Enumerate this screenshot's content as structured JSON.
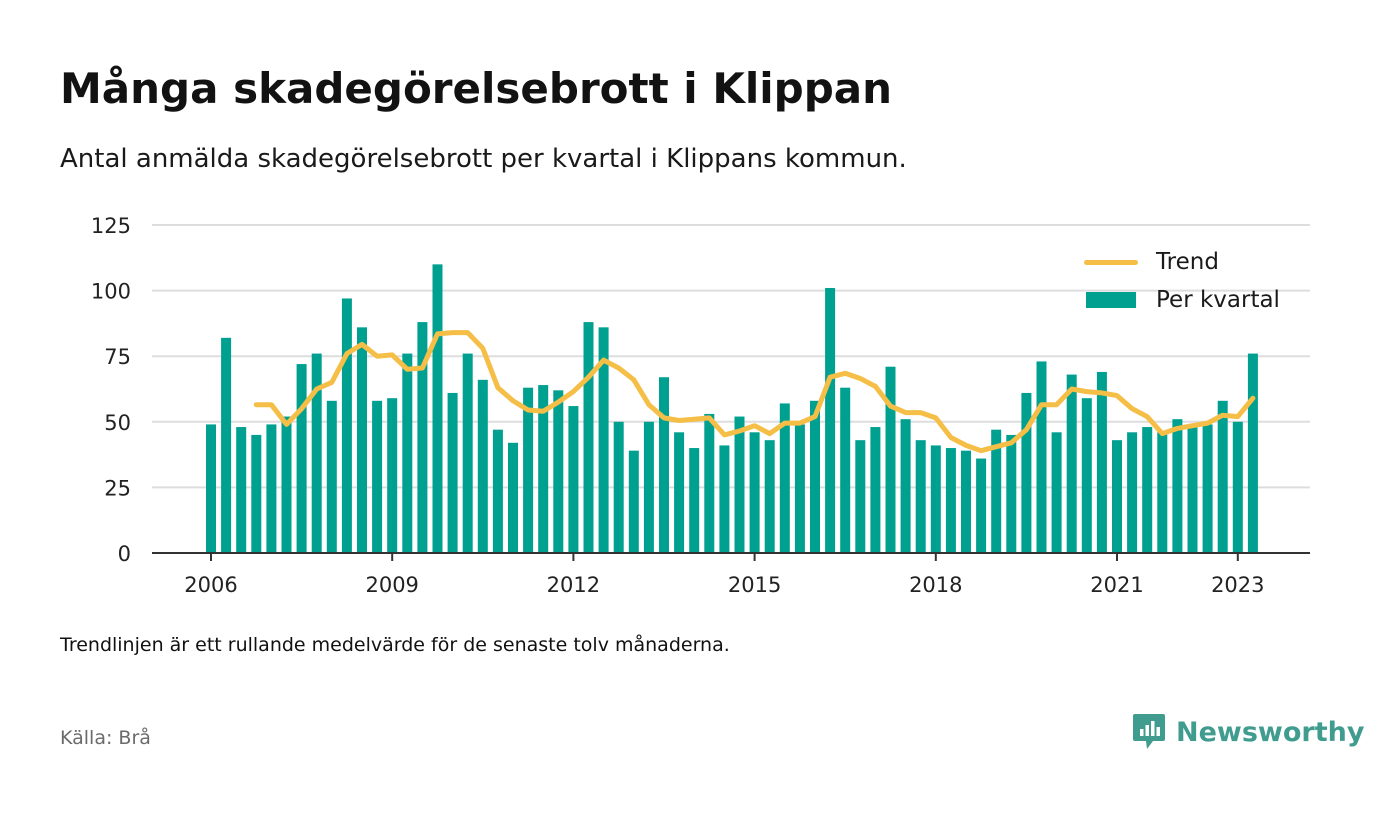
{
  "header": {
    "title": "Många skadegörelsebrott i Klippan",
    "subtitle": "Antal anmälda skadegörelsebrott per kvartal i Klippans kommun."
  },
  "footer": {
    "note": "Trendlinjen är ett rullande medelvärde för de senaste tolv månaderna.",
    "source": "Källa: Brå",
    "brand": "Newsworthy"
  },
  "colors": {
    "bar": "#00a090",
    "trend": "#f5be47",
    "grid": "#dddddd",
    "brand": "#3f9c8e"
  },
  "chart_data": {
    "type": "bar",
    "ylim": [
      0,
      125
    ],
    "y_ticks": [
      0,
      25,
      50,
      75,
      100,
      125
    ],
    "x_ticks": [
      "2006",
      "2009",
      "2012",
      "2015",
      "2018",
      "2021",
      "2023"
    ],
    "grid": true,
    "legend_position": "top-right",
    "legend": [
      "Trend",
      "Per kvartal"
    ],
    "categories": [
      "2006 Q1",
      "2006 Q2",
      "2006 Q3",
      "2006 Q4",
      "2007 Q1",
      "2007 Q2",
      "2007 Q3",
      "2007 Q4",
      "2008 Q1",
      "2008 Q2",
      "2008 Q3",
      "2008 Q4",
      "2009 Q1",
      "2009 Q2",
      "2009 Q3",
      "2009 Q4",
      "2010 Q1",
      "2010 Q2",
      "2010 Q3",
      "2010 Q4",
      "2011 Q1",
      "2011 Q2",
      "2011 Q3",
      "2011 Q4",
      "2012 Q1",
      "2012 Q2",
      "2012 Q3",
      "2012 Q4",
      "2013 Q1",
      "2013 Q2",
      "2013 Q3",
      "2013 Q4",
      "2014 Q1",
      "2014 Q2",
      "2014 Q3",
      "2014 Q4",
      "2015 Q1",
      "2015 Q2",
      "2015 Q3",
      "2015 Q4",
      "2016 Q1",
      "2016 Q2",
      "2016 Q3",
      "2016 Q4",
      "2017 Q1",
      "2017 Q2",
      "2017 Q3",
      "2017 Q4",
      "2018 Q1",
      "2018 Q2",
      "2018 Q3",
      "2018 Q4",
      "2019 Q1",
      "2019 Q2",
      "2019 Q3",
      "2019 Q4",
      "2020 Q1",
      "2020 Q2",
      "2020 Q3",
      "2020 Q4",
      "2021 Q1",
      "2021 Q2",
      "2021 Q3",
      "2021 Q4",
      "2022 Q1",
      "2022 Q2",
      "2022 Q3",
      "2022 Q4",
      "2023 Q1",
      "2023 Q2"
    ],
    "series": [
      {
        "name": "Per kvartal",
        "values": [
          49,
          82,
          48,
          45,
          49,
          52,
          72,
          76,
          58,
          97,
          86,
          58,
          59,
          76,
          88,
          110,
          61,
          76,
          66,
          47,
          42,
          63,
          64,
          62,
          56,
          88,
          86,
          50,
          39,
          50,
          67,
          46,
          40,
          53,
          41,
          52,
          46,
          43,
          57,
          49,
          58,
          101,
          63,
          43,
          48,
          71,
          51,
          43,
          41,
          40,
          39,
          36,
          47,
          45,
          61,
          73,
          46,
          68,
          59,
          69,
          43,
          46,
          48,
          46,
          51,
          49,
          49,
          58,
          50,
          76
        ]
      },
      {
        "name": "Trend",
        "values": [
          null,
          null,
          null,
          56.5,
          56.5,
          49,
          55,
          62.5,
          65,
          76,
          79.5,
          75,
          75.5,
          70,
          70.5,
          83.5,
          84,
          84,
          78,
          63,
          58,
          54.5,
          54,
          57.5,
          61.5,
          67,
          73.5,
          70.5,
          66,
          56.5,
          51.5,
          50.5,
          51,
          51.5,
          45,
          46.5,
          48.5,
          45.5,
          49.5,
          49.5,
          52,
          67,
          68.5,
          66.5,
          63.5,
          56,
          53.5,
          53.5,
          51.5,
          44,
          41,
          39,
          40.5,
          42,
          47,
          56.5,
          56.5,
          62.5,
          61.5,
          61,
          60,
          55,
          52,
          45.5,
          47.5,
          48.5,
          49.5,
          52.5,
          52,
          59
        ]
      }
    ]
  }
}
